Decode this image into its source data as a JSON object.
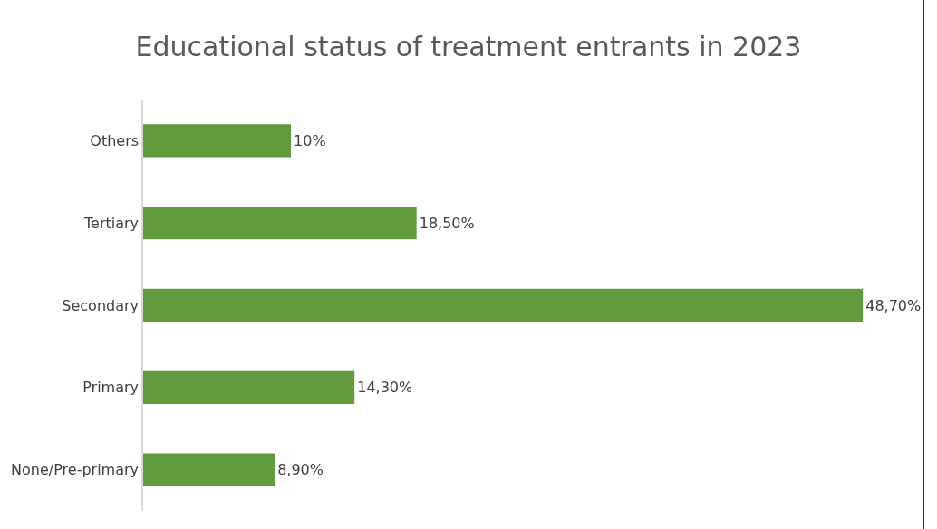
{
  "chart_data": {
    "type": "bar",
    "orientation": "horizontal",
    "title": "Educational status of treatment entrants in 2023",
    "categories": [
      "Others",
      "Tertiary",
      "Secondary",
      "Primary",
      "None/Pre-primary"
    ],
    "values": [
      10,
      18.5,
      48.7,
      14.3,
      8.9
    ],
    "value_labels": [
      "10%",
      "18,50%",
      "48,70%",
      "14,30%",
      "8,90%"
    ],
    "color": "#629b3e",
    "tick_labels": "y",
    "legend": false
  }
}
